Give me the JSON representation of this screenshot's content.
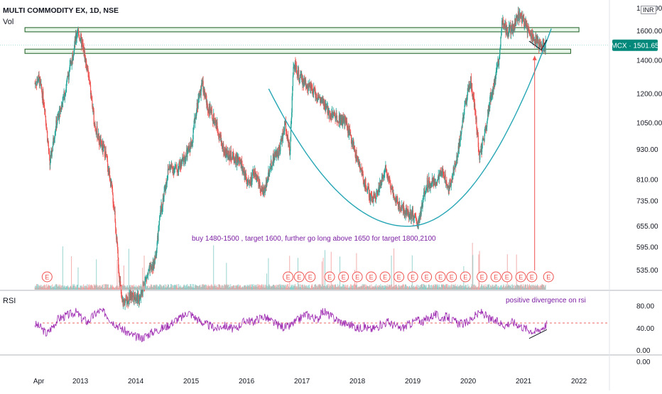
{
  "header": {
    "symbol_line": "MULTI COMMODITY EX, 1D, NSE",
    "volume_label": "Vol",
    "rsi_label": "RSI",
    "currency": "INR"
  },
  "price_badge": {
    "text": "MCX · 1501.65",
    "color": "#00897b"
  },
  "annotations": {
    "trade_note": "buy 1480-1500 , target 1600, further go long above 1650 for target 1800,2100",
    "rsi_note": "positive divergence on rsi",
    "earnings_marker": "E"
  },
  "colors": {
    "up": "#26a69a",
    "down": "#ef5350",
    "zone_fill": "#e8f5e9",
    "zone_stroke": "#1b5e20",
    "cup_curve": "#26a6b5",
    "rsi_line": "#9c27b0",
    "rsi_mid": "#e53935",
    "text_purple": "#7b1fa2",
    "earnings": "#ef5350"
  },
  "chart_data": [
    {
      "type": "candlestick",
      "y_scale": "log",
      "y_ticks": [
        "1600.00",
        "1400.00",
        "1200.00",
        "1050.00",
        "930.00",
        "810.00",
        "735.00",
        "655.00",
        "595.00",
        "535.00"
      ],
      "y_tick_values": [
        1600,
        1400,
        1200,
        1050,
        930,
        810,
        735,
        655,
        595,
        535
      ],
      "x_ticks": [
        "Apr",
        "2013",
        "2014",
        "2015",
        "2016",
        "2017",
        "2018",
        "2019",
        "2020",
        "2021",
        "2022"
      ],
      "x_tick_years": [
        2012.25,
        2013,
        2014,
        2015,
        2016,
        2017,
        2018,
        2019,
        2020,
        2021,
        2022
      ],
      "last_price": 1501.65,
      "price_path": [
        [
          2012.18,
          1260
        ],
        [
          2012.25,
          1290
        ],
        [
          2012.35,
          1150
        ],
        [
          2012.45,
          870
        ],
        [
          2012.55,
          1030
        ],
        [
          2012.7,
          1180
        ],
        [
          2012.85,
          1420
        ],
        [
          2012.95,
          1610
        ],
        [
          2013.05,
          1480
        ],
        [
          2013.15,
          1300
        ],
        [
          2013.25,
          1060
        ],
        [
          2013.35,
          960
        ],
        [
          2013.45,
          920
        ],
        [
          2013.55,
          800
        ],
        [
          2013.62,
          700
        ],
        [
          2013.68,
          560
        ],
        [
          2013.75,
          460
        ],
        [
          2013.85,
          470
        ],
        [
          2013.95,
          480
        ],
        [
          2014.05,
          470
        ],
        [
          2014.2,
          520
        ],
        [
          2014.35,
          560
        ],
        [
          2014.45,
          700
        ],
        [
          2014.6,
          860
        ],
        [
          2014.75,
          850
        ],
        [
          2014.9,
          900
        ],
        [
          2015.0,
          950
        ],
        [
          2015.1,
          1130
        ],
        [
          2015.2,
          1260
        ],
        [
          2015.3,
          1130
        ],
        [
          2015.45,
          1050
        ],
        [
          2015.6,
          920
        ],
        [
          2015.75,
          900
        ],
        [
          2015.9,
          870
        ],
        [
          2016.05,
          790
        ],
        [
          2016.15,
          840
        ],
        [
          2016.3,
          760
        ],
        [
          2016.45,
          880
        ],
        [
          2016.6,
          940
        ],
        [
          2016.7,
          1050
        ],
        [
          2016.78,
          920
        ],
        [
          2016.85,
          1380
        ],
        [
          2016.95,
          1300
        ],
        [
          2017.1,
          1250
        ],
        [
          2017.3,
          1180
        ],
        [
          2017.5,
          1100
        ],
        [
          2017.65,
          1080
        ],
        [
          2017.8,
          1050
        ],
        [
          2017.95,
          930
        ],
        [
          2018.1,
          820
        ],
        [
          2018.25,
          740
        ],
        [
          2018.4,
          780
        ],
        [
          2018.5,
          860
        ],
        [
          2018.6,
          790
        ],
        [
          2018.75,
          720
        ],
        [
          2018.9,
          700
        ],
        [
          2019.0,
          690
        ],
        [
          2019.1,
          660
        ],
        [
          2019.25,
          800
        ],
        [
          2019.4,
          800
        ],
        [
          2019.55,
          840
        ],
        [
          2019.65,
          780
        ],
        [
          2019.8,
          900
        ],
        [
          2019.95,
          1150
        ],
        [
          2020.05,
          1280
        ],
        [
          2020.15,
          1050
        ],
        [
          2020.2,
          900
        ],
        [
          2020.3,
          1000
        ],
        [
          2020.4,
          1180
        ],
        [
          2020.5,
          1300
        ],
        [
          2020.55,
          1400
        ],
        [
          2020.62,
          1700
        ],
        [
          2020.7,
          1600
        ],
        [
          2020.8,
          1620
        ],
        [
          2020.9,
          1720
        ],
        [
          2021.0,
          1680
        ],
        [
          2021.1,
          1600
        ],
        [
          2021.2,
          1550
        ],
        [
          2021.3,
          1500
        ],
        [
          2021.4,
          1501.65
        ]
      ],
      "zones": [
        {
          "from": 1608,
          "to": 1628,
          "x_start": 2012.0,
          "x_end": 2022.0
        },
        {
          "from": 1455,
          "to": 1475,
          "x_start": 2012.0,
          "x_end": 2021.85
        }
      ],
      "cup_curve": {
        "x_start": 2016.4,
        "x_bottom": 2018.9,
        "y_bottom": 655,
        "x_end": 2021.5,
        "y_end": 1620
      },
      "target_arrow": {
        "x": 2021.2,
        "from": 535,
        "to": 1430
      },
      "earnings_years": [
        2012.4,
        2016.75,
        2016.95,
        2017.15,
        2017.5,
        2017.75,
        2018.0,
        2018.25,
        2018.5,
        2018.75,
        2019.0,
        2019.25,
        2019.5,
        2019.7,
        2019.95,
        2020.25,
        2020.5,
        2020.7,
        2020.95,
        2021.15,
        2021.45
      ]
    },
    {
      "type": "line",
      "name": "RSI",
      "y_ticks": [
        "80.00",
        "40.00",
        "0.00",
        "0.00"
      ],
      "y_tick_values": [
        80,
        40,
        0,
        0
      ],
      "ylim": [
        0,
        100
      ],
      "mid_line": 50,
      "values": [
        48,
        42,
        30,
        44,
        58,
        62,
        66,
        70,
        58,
        52,
        64,
        72,
        68,
        54,
        46,
        38,
        30,
        26,
        22,
        28,
        34,
        38,
        42,
        48,
        56,
        60,
        70,
        62,
        54,
        48,
        44,
        40,
        46,
        42,
        38,
        48,
        56,
        52,
        58,
        62,
        54,
        48,
        44,
        42,
        50,
        58,
        66,
        62,
        56,
        72,
        64,
        58,
        52,
        48,
        46,
        40,
        44,
        38,
        42,
        48,
        52,
        46,
        40,
        44,
        50,
        56,
        52,
        60,
        66,
        58,
        62,
        54,
        50,
        48,
        56,
        64,
        70,
        58,
        54,
        50,
        46,
        52,
        48,
        42,
        38,
        34,
        40,
        48
      ]
    }
  ]
}
